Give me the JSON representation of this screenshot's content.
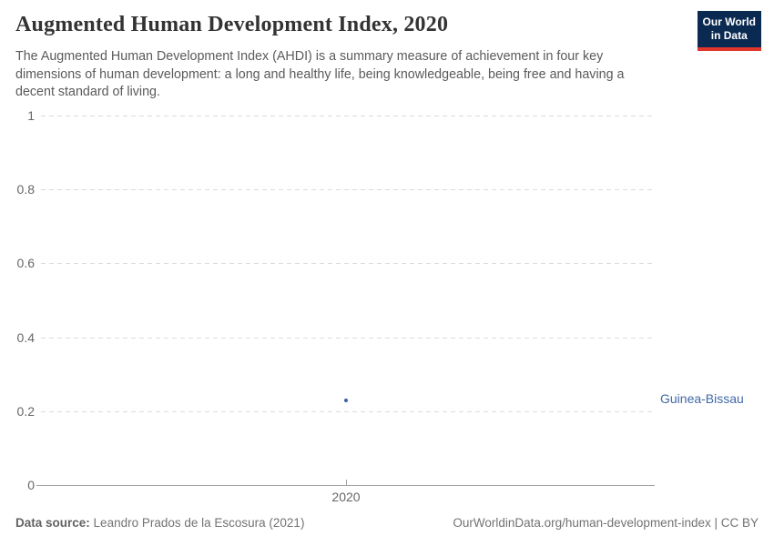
{
  "header": {
    "title": "Augmented Human Development Index, 2020",
    "subtitle": "The Augmented Human Development Index (AHDI) is a summary measure of achievement in four key dimensions of human development: a long and healthy life, being knowledgeable, being free and having a decent standard of living.",
    "logo": {
      "line1": "Our World",
      "line2": "in Data",
      "bg_color": "#0b2a51",
      "bar_color": "#e0362c"
    }
  },
  "chart_data": {
    "type": "scatter",
    "title": "Augmented Human Development Index, 2020",
    "x": [
      2020
    ],
    "series": [
      {
        "name": "Guinea-Bissau",
        "values": [
          0.23
        ],
        "color": "#3c5fa7",
        "label_color": "#4268a5"
      }
    ],
    "xticks": [
      "2020"
    ],
    "yticks": [
      "0",
      "0.2",
      "0.4",
      "0.6",
      "0.8",
      "1"
    ],
    "ylim": [
      0,
      1
    ],
    "xlabel": "",
    "ylabel": "",
    "grid": "horizontal-dashed",
    "legend": "entity-label-right"
  },
  "footer": {
    "datasource_label": "Data source:",
    "datasource_value": "Leandro Prados de la Escosura (2021)",
    "attribution": "OurWorldinData.org/human-development-index | CC BY"
  }
}
